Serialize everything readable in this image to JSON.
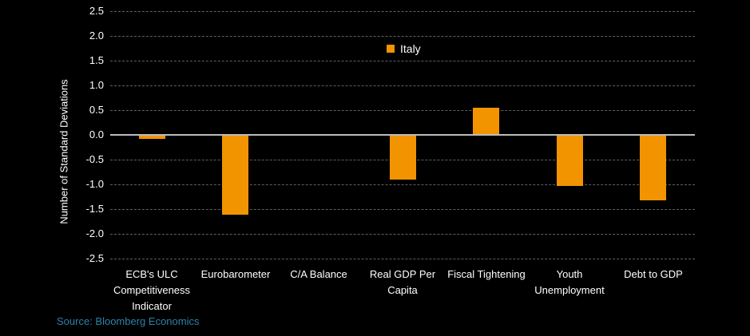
{
  "chart_data": {
    "type": "bar",
    "title": "",
    "xlabel": "",
    "ylabel": "Number of Standard Deviations",
    "ylim": [
      -2.5,
      2.5
    ],
    "ytick_step": 0.5,
    "yticks": [
      "2.5",
      "2.0",
      "1.5",
      "1.0",
      "0.5",
      "0.0",
      "-0.5",
      "-1.0",
      "-1.5",
      "-2.0",
      "-2.5"
    ],
    "grid": "dashed-horizontal",
    "legend_position": "top-center",
    "categories": [
      "ECB's ULC Competitiveness Indicator",
      "Eurobarometer",
      "C/A Balance",
      "Real GDP Per Capita",
      "Fiscal Tightening",
      "Youth Unemployment",
      "Debt to GDP"
    ],
    "series": [
      {
        "name": "Italy",
        "color": "#F29400",
        "values": [
          -0.08,
          -1.62,
          0.0,
          -0.9,
          0.55,
          -1.03,
          -1.32
        ]
      }
    ]
  },
  "source": {
    "text": "Source: Bloomberg Economics",
    "color": "#2D82AA"
  },
  "colors": {
    "background": "#000000",
    "bar": "#F29400",
    "zero_line": "#BDBDBD",
    "gridline": "#606060",
    "text": "#FFFFFF"
  }
}
